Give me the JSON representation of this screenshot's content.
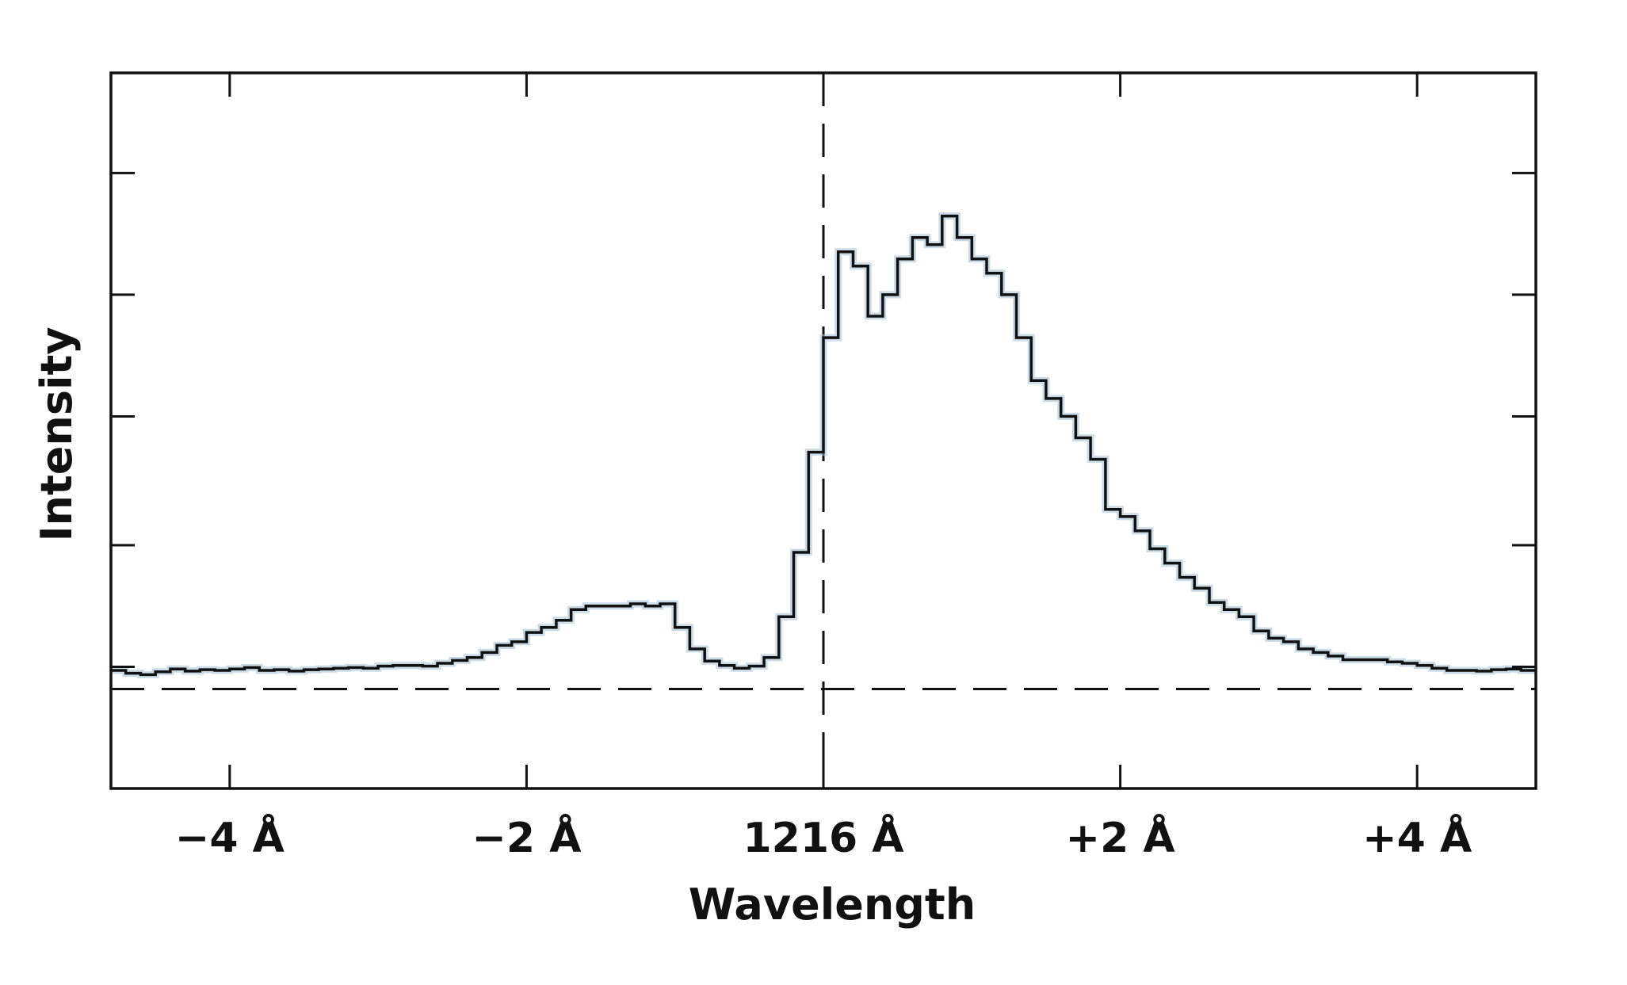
{
  "chart_data": {
    "type": "line",
    "step": true,
    "xlabel": "Wavelength",
    "ylabel": "Intensity",
    "xlim": [
      -4.8,
      4.8
    ],
    "ylim": [
      0,
      1.0
    ],
    "x_tick_labels": [
      {
        "x": -4,
        "label": "−4 Å"
      },
      {
        "x": -2,
        "label": "−2 Å"
      },
      {
        "x": 0,
        "label": "1216 Å"
      },
      {
        "x": 2,
        "label": "+2 Å"
      },
      {
        "x": 4,
        "label": "+4 Å"
      }
    ],
    "y_ticks": [
      0.17,
      0.34,
      0.52,
      0.69,
      0.86
    ],
    "reference_lines": {
      "vertical_x": 0,
      "horizontal_y": 0.139
    },
    "grid": false,
    "colors": {
      "line": "#111111",
      "error_band": "#9fbfd6",
      "axes": "#111111"
    },
    "series": [
      {
        "x": [
          -4.8,
          -4.7,
          -4.6,
          -4.5,
          -4.4,
          -4.3,
          -4.2,
          -4.1,
          -4.0,
          -3.9,
          -3.8,
          -3.7,
          -3.6,
          -3.5,
          -3.4,
          -3.3,
          -3.2,
          -3.1,
          -3.0,
          -2.9,
          -2.8,
          -2.7,
          -2.6,
          -2.5,
          -2.4,
          -2.3,
          -2.2,
          -2.1,
          -2.0,
          -1.9,
          -1.8,
          -1.7,
          -1.6,
          -1.5,
          -1.4,
          -1.3,
          -1.2,
          -1.1,
          -1.0,
          -0.9,
          -0.8,
          -0.7,
          -0.6,
          -0.5,
          -0.4,
          -0.3,
          -0.2,
          -0.1,
          0.0,
          0.1,
          0.2,
          0.3,
          0.4,
          0.5,
          0.6,
          0.7,
          0.8,
          0.9,
          1.0,
          1.1,
          1.2,
          1.3,
          1.4,
          1.5,
          1.6,
          1.7,
          1.8,
          1.9,
          2.0,
          2.1,
          2.2,
          2.3,
          2.4,
          2.5,
          2.6,
          2.7,
          2.8,
          2.9,
          3.0,
          3.1,
          3.2,
          3.3,
          3.4,
          3.5,
          3.6,
          3.7,
          3.8,
          3.9,
          4.0,
          4.1,
          4.2,
          4.3,
          4.4,
          4.5,
          4.6,
          4.7
        ],
        "y": [
          0.165,
          0.161,
          0.159,
          0.163,
          0.167,
          0.164,
          0.166,
          0.165,
          0.167,
          0.169,
          0.165,
          0.166,
          0.164,
          0.166,
          0.167,
          0.168,
          0.169,
          0.168,
          0.171,
          0.172,
          0.172,
          0.171,
          0.175,
          0.179,
          0.183,
          0.19,
          0.2,
          0.205,
          0.218,
          0.225,
          0.235,
          0.25,
          0.255,
          0.255,
          0.255,
          0.258,
          0.255,
          0.258,
          0.225,
          0.195,
          0.178,
          0.172,
          0.168,
          0.171,
          0.183,
          0.24,
          0.33,
          0.47,
          0.63,
          0.75,
          0.73,
          0.66,
          0.69,
          0.74,
          0.77,
          0.76,
          0.8,
          0.77,
          0.74,
          0.72,
          0.69,
          0.63,
          0.57,
          0.545,
          0.52,
          0.49,
          0.46,
          0.39,
          0.38,
          0.36,
          0.335,
          0.315,
          0.295,
          0.28,
          0.26,
          0.25,
          0.24,
          0.22,
          0.21,
          0.205,
          0.195,
          0.19,
          0.185,
          0.18,
          0.18,
          0.18,
          0.177,
          0.175,
          0.172,
          0.168,
          0.165,
          0.165,
          0.164,
          0.166,
          0.167,
          0.165
        ]
      }
    ]
  }
}
